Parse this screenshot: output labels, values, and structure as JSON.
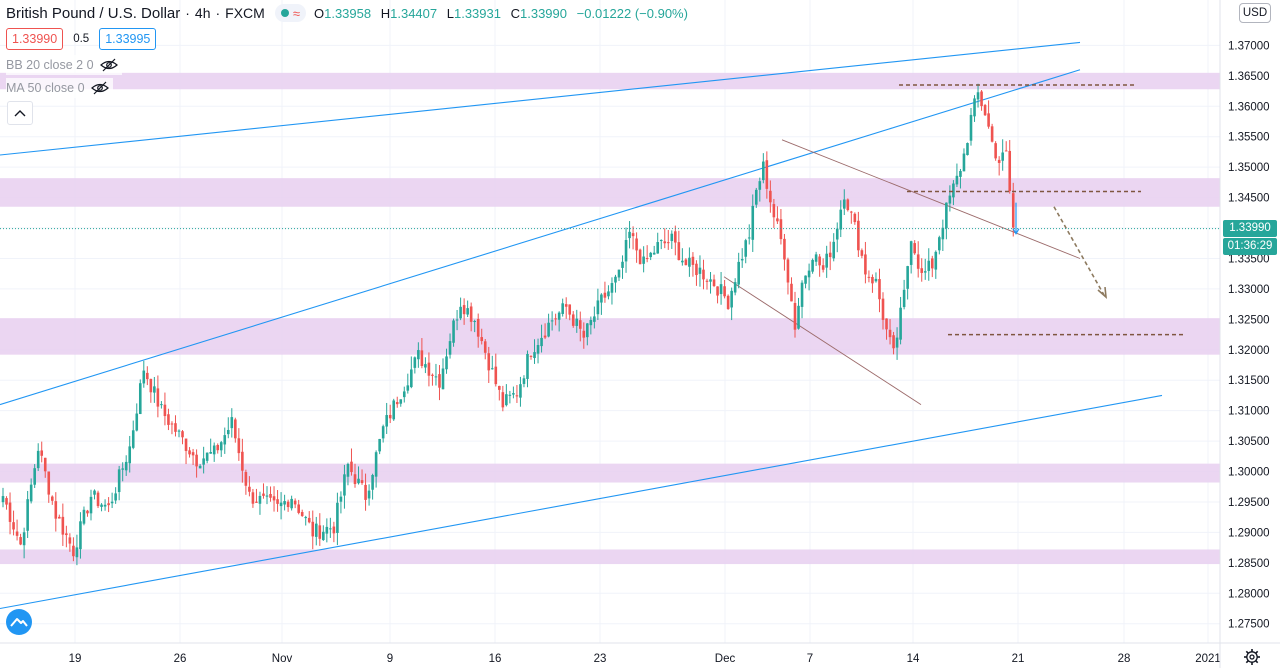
{
  "legend": {
    "title": "British Pound / U.S. Dollar · 4h · FXCM",
    "symbol": "British Pound / U.S. Dollar",
    "interval": "4h",
    "source": "FXCM",
    "open_label": "O",
    "open": "1.33958",
    "high_label": "H",
    "high": "1.34407",
    "low_label": "L",
    "low": "1.33931",
    "close_label": "C",
    "close": "1.33990",
    "change": "−0.01222 (−0.90%)"
  },
  "order_buttons": {
    "sell": "1.33990",
    "spread": "0.5",
    "buy": "1.33995"
  },
  "indicators": [
    {
      "label": "BB 20 close 2 0",
      "icon": "eye-crossed-icon"
    },
    {
      "label": "MA 50 close 0",
      "icon": "eye-crossed-icon"
    }
  ],
  "currency_button": "USD",
  "last_price_tag": "1.33990",
  "countdown_tag": "01:36:29",
  "colors": {
    "up": "#26a69a",
    "down": "#ef5350",
    "zone": "#e7cff0",
    "trendline": "#2196f3",
    "level_line": "#7f5640",
    "axis_text": "#131722",
    "grid": "#f0f3fa"
  },
  "chart_data": {
    "type": "candlestick",
    "title": "British Pound / U.S. Dollar, 4h, FXCM",
    "xlabel": "",
    "ylabel": "",
    "ylim": [
      1.272,
      1.375
    ],
    "y_ticks": [
      "1.37000",
      "1.36500",
      "1.36000",
      "1.35500",
      "1.35000",
      "1.34500",
      "1.34000",
      "1.33500",
      "1.33000",
      "1.32500",
      "1.32000",
      "1.31500",
      "1.31000",
      "1.30500",
      "1.30000",
      "1.29500",
      "1.29000",
      "1.28500",
      "1.28000",
      "1.27500"
    ],
    "x_ticks": [
      "19",
      "26",
      "Nov",
      "9",
      "16",
      "23",
      "Dec",
      "7",
      "14",
      "21",
      "28",
      "2021"
    ],
    "grid": true,
    "price_path": [
      [
        0,
        1.296
      ],
      [
        5,
        1.288
      ],
      [
        10,
        1.304
      ],
      [
        15,
        1.293
      ],
      [
        20,
        1.287
      ],
      [
        25,
        1.296
      ],
      [
        30,
        1.294
      ],
      [
        36,
        1.304
      ],
      [
        40,
        1.317
      ],
      [
        45,
        1.31
      ],
      [
        50,
        1.306
      ],
      [
        55,
        1.302
      ],
      [
        60,
        1.303
      ],
      [
        65,
        1.308
      ],
      [
        70,
        1.296
      ],
      [
        78,
        1.294
      ],
      [
        82,
        1.296
      ],
      [
        88,
        1.29
      ],
      [
        94,
        1.291
      ],
      [
        98,
        1.301
      ],
      [
        103,
        1.296
      ],
      [
        108,
        1.307
      ],
      [
        112,
        1.312
      ],
      [
        118,
        1.319
      ],
      [
        124,
        1.315
      ],
      [
        127,
        1.322
      ],
      [
        130,
        1.328
      ],
      [
        134,
        1.325
      ],
      [
        138,
        1.318
      ],
      [
        142,
        1.311
      ],
      [
        146,
        1.313
      ],
      [
        150,
        1.32
      ],
      [
        156,
        1.325
      ],
      [
        160,
        1.327
      ],
      [
        165,
        1.322
      ],
      [
        170,
        1.328
      ],
      [
        175,
        1.332
      ],
      [
        178,
        1.339
      ],
      [
        182,
        1.334
      ],
      [
        186,
        1.337
      ],
      [
        190,
        1.338
      ],
      [
        194,
        1.334
      ],
      [
        198,
        1.333
      ],
      [
        202,
        1.331
      ],
      [
        206,
        1.328
      ],
      [
        209,
        1.334
      ],
      [
        212,
        1.339
      ],
      [
        214,
        1.346
      ],
      [
        216,
        1.35
      ],
      [
        219,
        1.342
      ],
      [
        222,
        1.336
      ],
      [
        225,
        1.324
      ],
      [
        227,
        1.331
      ],
      [
        230,
        1.336
      ],
      [
        233,
        1.333
      ],
      [
        236,
        1.338
      ],
      [
        239,
        1.346
      ],
      [
        242,
        1.34
      ],
      [
        245,
        1.333
      ],
      [
        248,
        1.331
      ],
      [
        251,
        1.323
      ],
      [
        253,
        1.319
      ],
      [
        256,
        1.329
      ],
      [
        258,
        1.339
      ],
      [
        261,
        1.332
      ],
      [
        264,
        1.334
      ],
      [
        266,
        1.339
      ],
      [
        269,
        1.345
      ],
      [
        271,
        1.348
      ],
      [
        273,
        1.352
      ],
      [
        275,
        1.358
      ],
      [
        277,
        1.362
      ],
      [
        279,
        1.359
      ],
      [
        281,
        1.354
      ],
      [
        283,
        1.351
      ],
      [
        285,
        1.352
      ],
      [
        287,
        1.34
      ]
    ],
    "last_price": 1.3399,
    "zones": [
      {
        "from": 1.3628,
        "to": 1.3655
      },
      {
        "from": 1.3435,
        "to": 1.3482
      },
      {
        "from": 1.3192,
        "to": 1.3252
      },
      {
        "from": 1.2982,
        "to": 1.3013
      },
      {
        "from": 1.2848,
        "to": 1.2872
      }
    ],
    "trendlines": [
      {
        "name": "channel-upper",
        "from": [
          "start",
          1.352
        ],
        "to": [
          "Dec 21",
          1.3705
        ]
      },
      {
        "name": "channel-upper-parallel",
        "from": [
          "start",
          1.311
        ],
        "to": [
          "Dec 21",
          1.366
        ]
      },
      {
        "name": "channel-lower",
        "from": [
          "start",
          1.2775
        ],
        "to": [
          "Dec 28",
          1.3125
        ]
      },
      {
        "name": "falling-wedge-upper",
        "from": [
          "Dec 4",
          1.3545
        ],
        "to": [
          "Dec 21",
          1.335
        ]
      },
      {
        "name": "falling-wedge-lower",
        "from": [
          "Dec 1",
          1.332
        ],
        "to": [
          "Dec 14",
          1.311
        ]
      }
    ],
    "levels": [
      1.3635,
      1.346,
      1.3225
    ],
    "projection": {
      "from": 1.3435,
      "to": 1.329
    }
  }
}
